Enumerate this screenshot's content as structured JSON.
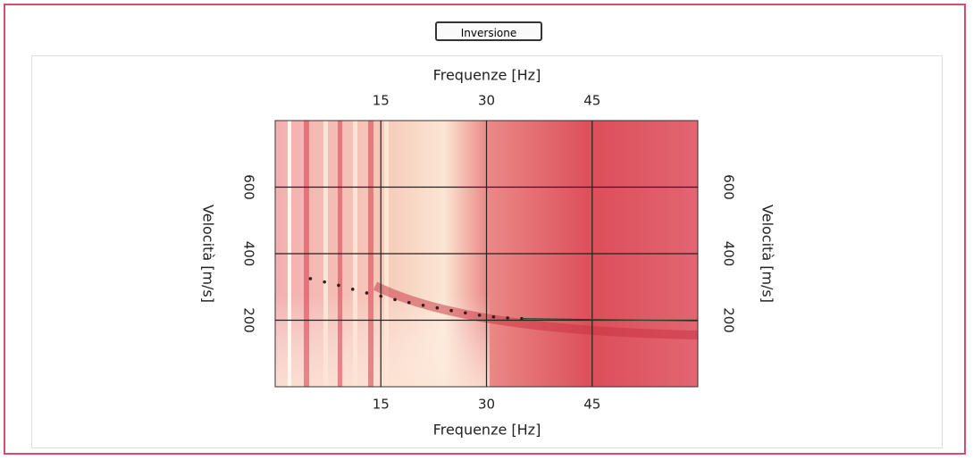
{
  "button": "Inversione",
  "chart_data": {
    "type": "scatter",
    "title": "Frequenze [Hz]",
    "xlabel": "Frequenze [Hz]",
    "ylabel": "Velocità [m/s]",
    "y2label": "Velocità [m/s]",
    "xlim": [
      0,
      60
    ],
    "xticks": [
      15,
      30,
      45
    ],
    "ylim": [
      0,
      800
    ],
    "yticks": [
      200,
      400,
      600
    ],
    "grid": true,
    "series": [
      {
        "color": "#3a1a1a",
        "style": "dots",
        "x": [
          5,
          7,
          9,
          11,
          13,
          15,
          17,
          19,
          21,
          23,
          25,
          27,
          29,
          31,
          33,
          35
        ],
        "values": [
          325,
          315,
          305,
          293,
          282,
          272,
          262,
          253,
          245,
          237,
          229,
          222,
          215,
          210,
          207,
          205
        ]
      },
      {
        "color": "#2a4a2a",
        "style": "line",
        "x": [
          35,
          60
        ],
        "values": [
          205,
          198
        ]
      }
    ]
  }
}
